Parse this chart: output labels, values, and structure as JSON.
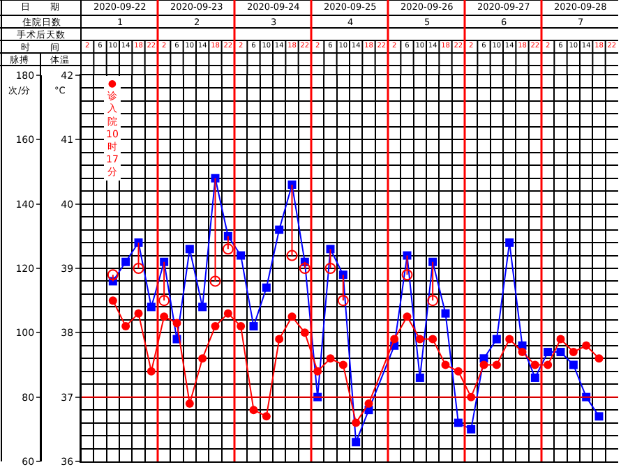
{
  "chart_data": {
    "type": "line",
    "categories": [
      "2",
      "6",
      "10",
      "14",
      "18",
      "22",
      "2",
      "6",
      "10",
      "14",
      "18",
      "22",
      "2",
      "6",
      "10",
      "14",
      "18",
      "22",
      "2",
      "6",
      "10",
      "14",
      "18",
      "22",
      "2",
      "6",
      "10",
      "14",
      "18",
      "22",
      "2",
      "6",
      "10",
      "14",
      "18",
      "22",
      "2",
      "6",
      "10",
      "14",
      "18",
      "22"
    ],
    "series": [
      {
        "color": "#0000ff",
        "marker": "square",
        "line_style": "solid",
        "values": [
          null,
          null,
          38.8,
          39.1,
          39.4,
          38.4,
          39.1,
          37.9,
          39.3,
          38.4,
          40.4,
          39.5,
          39.2,
          38.1,
          38.7,
          39.6,
          40.3,
          39.1,
          37.0,
          39.3,
          38.9,
          36.3,
          36.8,
          null,
          37.8,
          39.2,
          37.3,
          39.1,
          38.3,
          36.6,
          36.5,
          37.6,
          37.9,
          39.4,
          37.8,
          37.3,
          37.7,
          37.7,
          37.5,
          37.0,
          36.7,
          null
        ]
      },
      {
        "color": "#ff0000",
        "marker": "circle",
        "line_style": "solid",
        "axis": "y2",
        "values": [
          null,
          null,
          110,
          102,
          106,
          88,
          105,
          103,
          78,
          92,
          102,
          106,
          102,
          76,
          74,
          98,
          105,
          100,
          88,
          92,
          90,
          72,
          78,
          null,
          98,
          105,
          98,
          98,
          90,
          88,
          80,
          90,
          90,
          98,
          94,
          90,
          90,
          98,
          94,
          96,
          92,
          null
        ]
      },
      {
        "type": "scatter",
        "color": "#ff0000",
        "marker": "circle",
        "errors": [
          null,
          null,
          [
            38.8,
            38.9
          ],
          null,
          [
            39.0,
            39.4
          ],
          null,
          [
            38.5,
            39.1
          ],
          null,
          null,
          null,
          [
            38.8,
            40.4
          ],
          [
            39.3,
            39.5
          ],
          null,
          null,
          null,
          null,
          [
            39.2,
            40.3
          ],
          [
            39.0,
            39.1
          ],
          null,
          [
            39.0,
            39.3
          ],
          [
            38.5,
            38.9
          ],
          null,
          null,
          null,
          null,
          [
            38.9,
            39.2
          ],
          null,
          [
            38.5,
            39.1
          ],
          null,
          null,
          null,
          null,
          null,
          null,
          null,
          null,
          null,
          null,
          null,
          null,
          null,
          null
        ],
        "values": [
          null,
          null,
          38.9,
          null,
          39.0,
          null,
          38.5,
          null,
          null,
          null,
          38.8,
          39.3,
          null,
          null,
          null,
          null,
          39.2,
          39.0,
          null,
          39.0,
          38.5,
          null,
          null,
          null,
          null,
          38.9,
          null,
          38.5,
          null,
          null,
          null,
          null,
          null,
          null,
          null,
          null,
          null,
          null,
          null,
          null,
          null,
          null
        ]
      }
    ],
    "ylim": [
      36,
      42
    ],
    "yticks": [
      36,
      37,
      38,
      39,
      40,
      41,
      42
    ],
    "y2lim": [
      60,
      180
    ],
    "y2ticks": [
      60,
      80,
      100,
      120,
      140,
      160,
      180
    ],
    "grid": true,
    "ref_lines": [
      {
        "axis": "y",
        "value": 37,
        "color": "#ff0000"
      }
    ],
    "annotations": [
      "日　　期",
      "住院日数",
      "手术后天数",
      "时　　间",
      "脉搏",
      "体温",
      "次/分",
      "°C",
      "2020-09-22",
      "2020-09-23",
      "2020-09-24",
      "2020-09-25",
      "2020-09-26",
      "2020-09-27",
      "2020-09-28",
      "1",
      "2",
      "3",
      "4",
      "5",
      "6",
      "7",
      "●诊入院10时17分"
    ]
  }
}
